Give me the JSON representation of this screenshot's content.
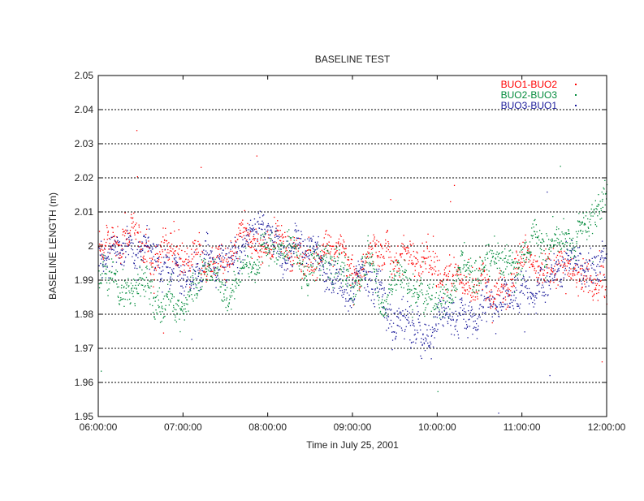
{
  "chart_data": {
    "type": "scatter",
    "title": "BASELINE TEST",
    "xlabel": "Time in July 25, 2001",
    "ylabel": "BASELINE LENGTH (m)",
    "x_tick_labels": [
      "06:00:00",
      "07:00:00",
      "08:00:00",
      "09:00:00",
      "10:00:00",
      "11:00:00",
      "12:00:00"
    ],
    "x_tick_hours": [
      6,
      7,
      8,
      9,
      10,
      11,
      12
    ],
    "xlim_hours": [
      6,
      12
    ],
    "y_ticks": [
      1.95,
      1.96,
      1.97,
      1.98,
      1.99,
      2,
      2.01,
      2.02,
      2.03,
      2.04,
      2.05
    ],
    "y_tick_labels": [
      "1.95",
      "1.96",
      "1.97",
      "1.98",
      "1.99",
      "2",
      "2.01",
      "2.02",
      "2.03",
      "2.04",
      "2.05"
    ],
    "ylim": [
      1.95,
      2.05
    ],
    "grid": "horizontal dashed",
    "legend_position": "top-right",
    "series": [
      {
        "name": "BUO1-BUO2",
        "color": "#ff0000",
        "trend_hours": [
          6.0,
          6.5,
          7.0,
          7.5,
          8.0,
          8.5,
          9.0,
          9.5,
          10.0,
          10.5,
          11.0,
          11.5,
          12.0
        ],
        "trend_values": [
          2.0,
          2.0,
          1.999,
          1.995,
          2.003,
          2.0,
          1.998,
          1.996,
          1.994,
          1.993,
          1.995,
          1.993,
          1.99
        ],
        "spread": 0.004
      },
      {
        "name": "BUO2-BUO3",
        "color": "#008a3a",
        "trend_hours": [
          6.0,
          6.5,
          7.0,
          7.5,
          8.0,
          8.5,
          9.0,
          9.5,
          10.0,
          10.5,
          11.0,
          11.5,
          12.0
        ],
        "trend_values": [
          1.99,
          1.985,
          1.988,
          1.99,
          1.993,
          1.991,
          1.99,
          1.989,
          1.984,
          1.992,
          1.997,
          2.002,
          2.01
        ],
        "spread": 0.004
      },
      {
        "name": "BUO3-BUO1",
        "color": "#1a1a9a",
        "trend_hours": [
          6.0,
          6.5,
          7.0,
          7.5,
          8.0,
          8.5,
          9.0,
          9.5,
          10.0,
          10.5,
          11.0,
          11.5,
          12.0
        ],
        "trend_values": [
          2.0,
          1.997,
          1.996,
          1.993,
          2.003,
          1.999,
          1.99,
          1.982,
          1.98,
          1.984,
          1.985,
          1.993,
          1.996
        ],
        "spread": 0.004
      }
    ]
  }
}
